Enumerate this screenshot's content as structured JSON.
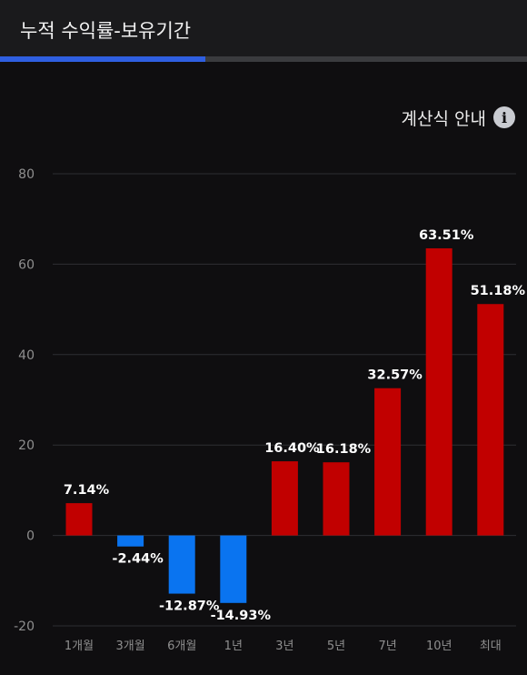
{
  "header": {
    "title": "누적 수익률-보유기간"
  },
  "progress": {
    "fraction": 0.39
  },
  "calc_guide": {
    "label": "계산식 안내",
    "icon": "info-icon"
  },
  "colors": {
    "positive": "#c10000",
    "negative": "#0a74f0",
    "accent": "#2f5fe0"
  },
  "chart_data": {
    "type": "bar",
    "categories": [
      "1개월",
      "3개월",
      "6개월",
      "1년",
      "3년",
      "5년",
      "7년",
      "10년",
      "최대"
    ],
    "values": [
      7.14,
      -2.44,
      -12.87,
      -14.93,
      16.4,
      16.18,
      32.57,
      63.51,
      51.18
    ],
    "value_labels": [
      "7.14%",
      "-2.44%",
      "-12.87%",
      "-14.93%",
      "16.40%",
      "16.18%",
      "32.57%",
      "63.51%",
      "51.18%"
    ],
    "y_ticks": [
      "80",
      "60",
      "40",
      "20",
      "0",
      "-20"
    ],
    "ylim": [
      -20,
      80
    ],
    "grid": true,
    "title": "",
    "xlabel": "",
    "ylabel": ""
  }
}
